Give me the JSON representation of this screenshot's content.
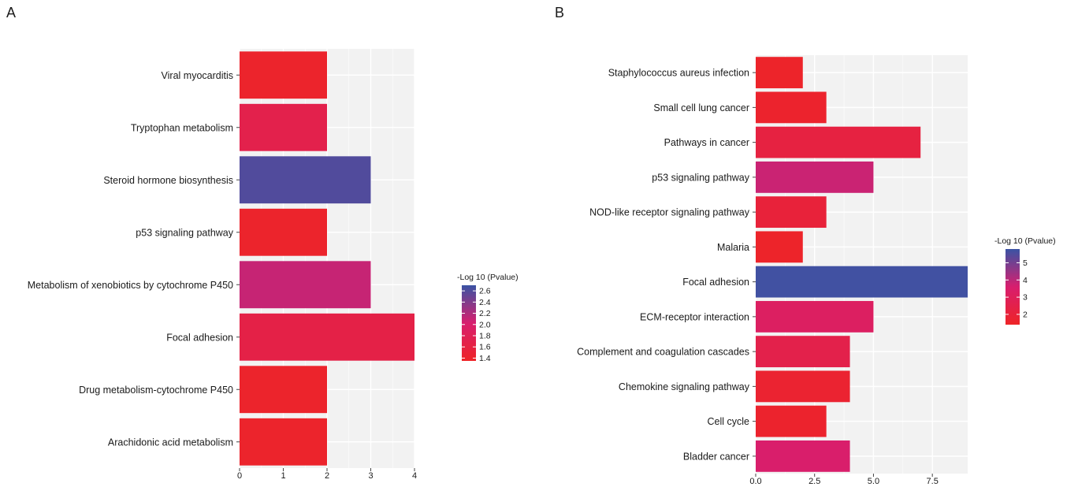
{
  "chart_data": [
    {
      "panel": "A",
      "type": "bar",
      "orientation": "horizontal",
      "categories": [
        "Viral myocarditis",
        "Tryptophan metabolism",
        "Steroid hormone biosynthesis",
        "p53 signaling pathway",
        "Metabolism of xenobiotics by cytochrome P450",
        "Focal adhesion",
        "Drug metabolism-cytochrome P450",
        "Arachidonic acid metabolism"
      ],
      "values": [
        2,
        2,
        3,
        2,
        3,
        4,
        2,
        2
      ],
      "color_values": [
        1.4,
        1.7,
        2.6,
        1.4,
        2.1,
        1.65,
        1.4,
        1.4
      ],
      "xlim": [
        0,
        4.0
      ],
      "xticks": [
        "0",
        "1",
        "2",
        "3",
        "4"
      ],
      "xtick_values": [
        0,
        1,
        2,
        3,
        4
      ],
      "legend": {
        "title": "-Log 10 (Pvalue)",
        "ticks": [
          "2.6",
          "2.4",
          "2.2",
          "2.0",
          "1.8",
          "1.6",
          "1.4"
        ],
        "tick_values": [
          2.6,
          2.4,
          2.2,
          2.0,
          1.8,
          1.6,
          1.4
        ],
        "range": [
          1.35,
          2.7
        ]
      },
      "grid": true
    },
    {
      "panel": "B",
      "type": "bar",
      "orientation": "horizontal",
      "categories": [
        "Staphylococcus aureus infection",
        "Small cell lung cancer",
        "Pathways in cancer",
        "p53 signaling pathway",
        "NOD-like receptor signaling pathway",
        "Malaria",
        "Focal adhesion",
        "ECM-receptor interaction",
        "Complement and coagulation cascades",
        "Chemokine signaling pathway",
        "Cell cycle",
        "Bladder cancer"
      ],
      "values": [
        2,
        3,
        7,
        5,
        3,
        2,
        9,
        5,
        4,
        4,
        3,
        4
      ],
      "color_values": [
        1.5,
        1.6,
        2.2,
        3.8,
        2.0,
        1.5,
        5.7,
        3.2,
        2.5,
        1.7,
        1.6,
        3.5
      ],
      "xlim": [
        0,
        9.0
      ],
      "xticks": [
        "0.0",
        "2.5",
        "5.0",
        "7.5"
      ],
      "xtick_values": [
        0,
        2.5,
        5,
        7.5
      ],
      "legend": {
        "title": "-Log 10 (Pvalue)",
        "ticks": [
          "5",
          "4",
          "3",
          "2"
        ],
        "tick_values": [
          5,
          4,
          3,
          2
        ],
        "range": [
          1.4,
          5.8
        ]
      },
      "grid": true
    }
  ],
  "colors": {
    "low": "#ee2427",
    "mid": "#d81e6e",
    "high": "#3a53a4",
    "panel_bg": "#f2f2f2",
    "grid": "#ffffff"
  },
  "panel_letters": [
    "A",
    "B"
  ]
}
